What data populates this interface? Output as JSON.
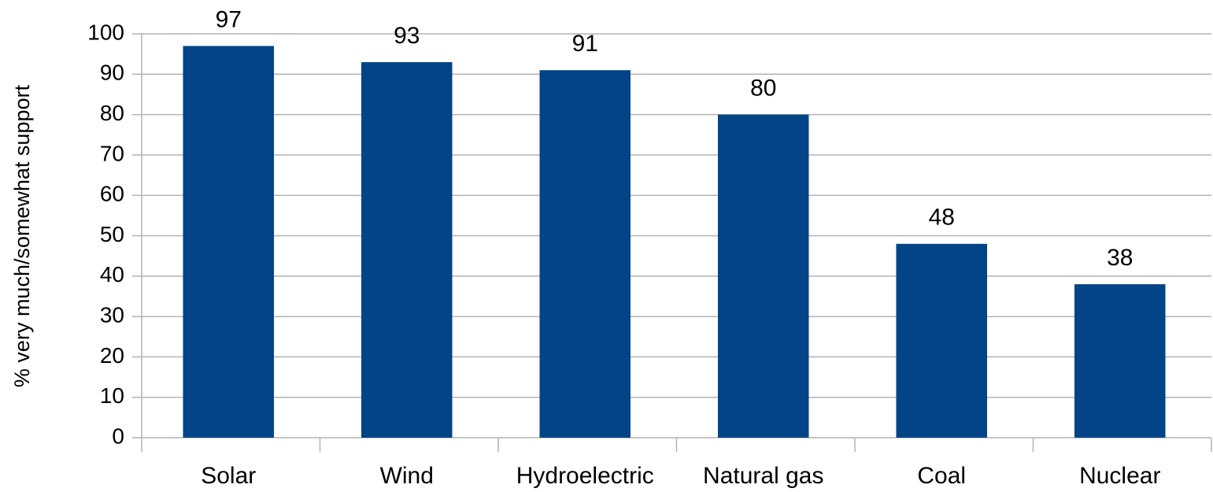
{
  "chart_data": {
    "type": "bar",
    "y_label": "% very much/somewhat support",
    "categories": [
      "Solar",
      "Wind",
      "Hydroelectric",
      "Natural gas",
      "Coal",
      "Nuclear"
    ],
    "values": [
      97,
      93,
      91,
      80,
      48,
      38
    ],
    "color": "#034486",
    "ylim": [
      0,
      100
    ],
    "yticks": [
      0,
      10,
      20,
      30,
      40,
      50,
      60,
      70,
      80,
      90,
      100
    ],
    "grid": true
  }
}
